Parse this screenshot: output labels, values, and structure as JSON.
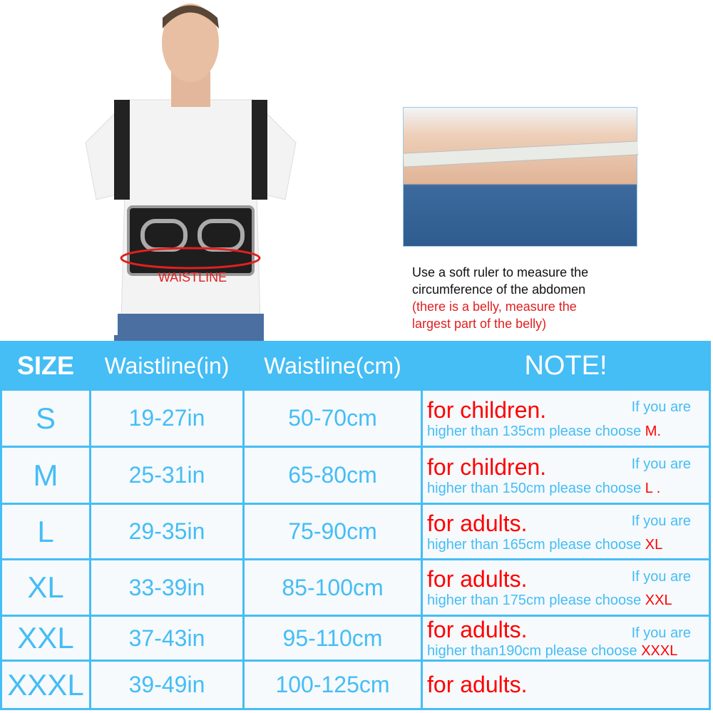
{
  "illustration": {
    "waist_label": "WAISTLINE"
  },
  "instructions": {
    "line1": "Use a soft ruler to measure the",
    "line2": "circumference of the abdomen",
    "line3": "(there is a belly, measure the",
    "line4": "largest part of the belly)"
  },
  "table": {
    "headers": [
      "SIZE",
      "Waistline(in)",
      "Waistline(cm)",
      "NOTE!"
    ],
    "rows": [
      {
        "size": "S",
        "in": "19-27in",
        "cm": "50-70cm",
        "note": "for children.",
        "if": "If you are",
        "higher": "higher than 135cm please choose",
        "choose": "M."
      },
      {
        "size": "M",
        "in": "25-31in",
        "cm": "65-80cm",
        "note": "for children.",
        "if": "If you are",
        "higher": "higher than 150cm please choose",
        "choose": "L ."
      },
      {
        "size": "L",
        "in": "29-35in",
        "cm": "75-90cm",
        "note": "for adults.",
        "if": "If you are",
        "higher": "higher than 165cm please choose",
        "choose": "XL"
      },
      {
        "size": "XL",
        "in": "33-39in",
        "cm": "85-100cm",
        "note": "for adults.",
        "if": "If you are",
        "higher": "higher than 175cm please choose",
        "choose": "XXL"
      },
      {
        "size": "XXL",
        "in": "37-43in",
        "cm": "95-110cm",
        "note": "for adults.",
        "if": "If you are",
        "higher": "higher than190cm please choose",
        "choose": "XXXL"
      },
      {
        "size": "XXXL",
        "in": "39-49in",
        "cm": "100-125cm",
        "note": "for adults."
      }
    ]
  },
  "colors": {
    "accent": "#45bdf5",
    "red": "#ff0000"
  }
}
